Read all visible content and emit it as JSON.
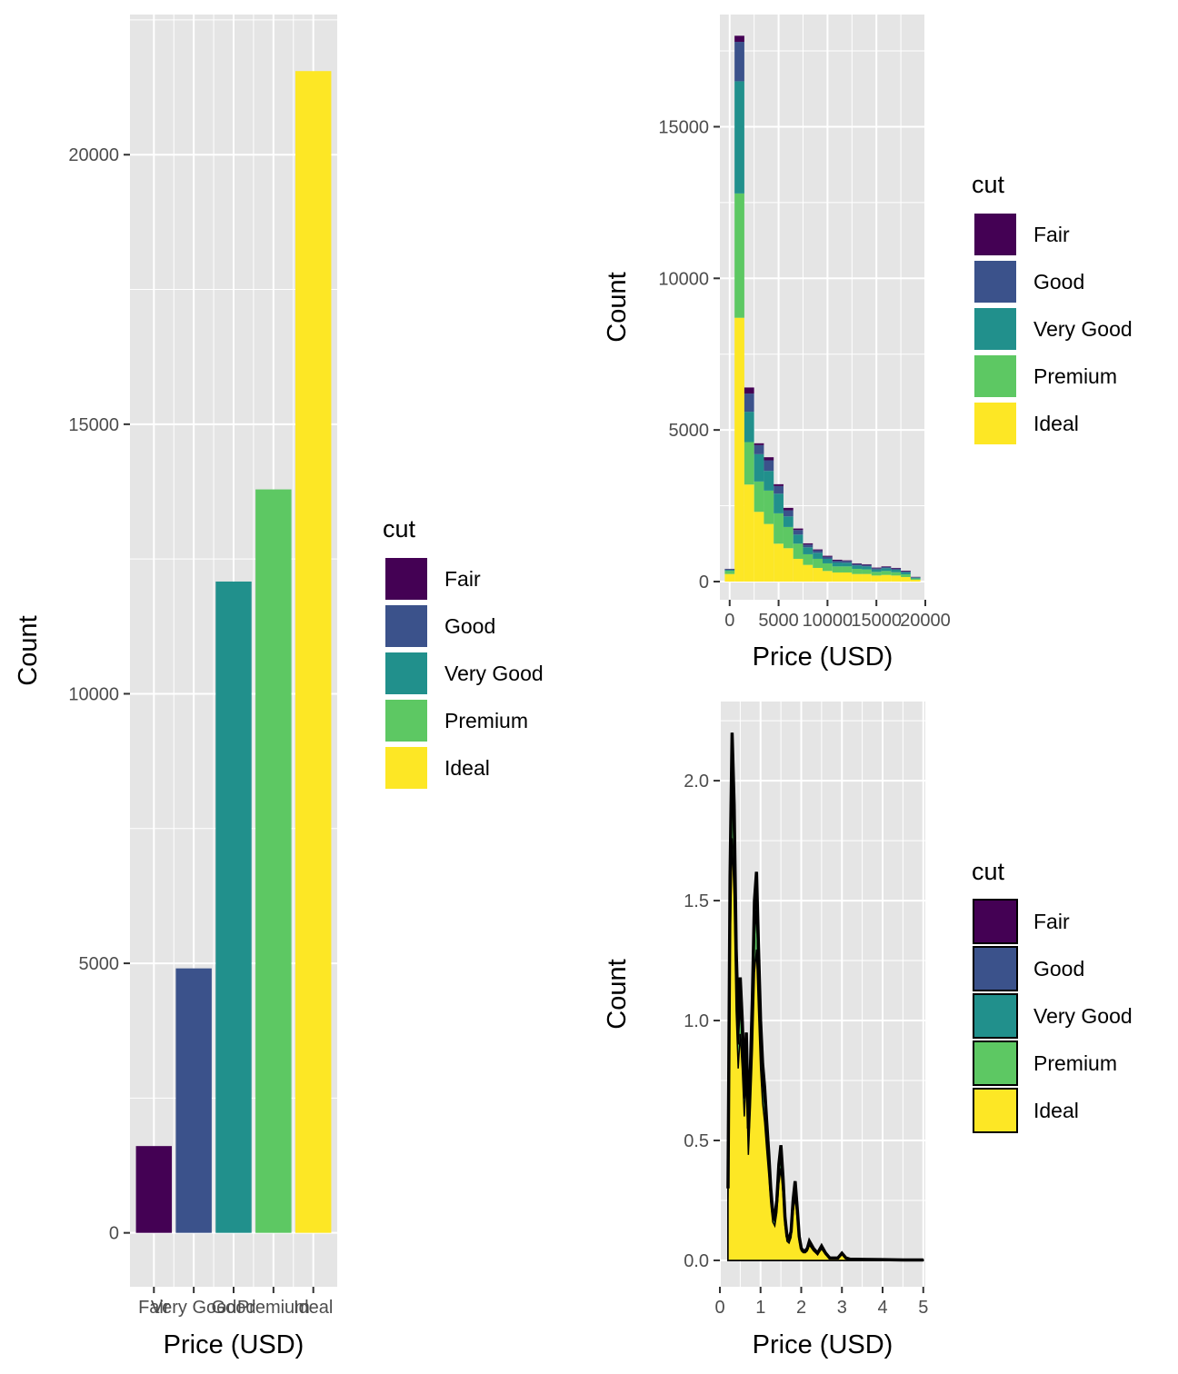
{
  "palette": {
    "panel_bg": "#e5e5e5",
    "grid": "#ffffff",
    "Fair": "#440154",
    "Good": "#3b528b",
    "Very Good": "#21908c",
    "Premium": "#5dc863",
    "Ideal": "#fde725"
  },
  "chart_data": [
    {
      "id": "bar",
      "type": "bar",
      "title": "",
      "xlabel": "Price (USD)",
      "ylabel": "Count",
      "categories": [
        "Fair",
        "Very Good",
        "Good",
        "Premium",
        "Ideal"
      ],
      "tick_labels": [
        "Fair",
        "Very Good",
        "Good",
        "Premium",
        "Ideal"
      ],
      "values": [
        1610,
        4906,
        12082,
        13791,
        21551
      ],
      "fill_keys": [
        "Fair",
        "Good",
        "Very Good",
        "Premium",
        "Ideal"
      ],
      "ylim": [
        -1000,
        22600
      ],
      "yticks": [
        0,
        5000,
        10000,
        15000,
        20000
      ],
      "legend": {
        "title": "cut",
        "entries": [
          "Fair",
          "Good",
          "Very Good",
          "Premium",
          "Ideal"
        ],
        "position": "right"
      },
      "grid": true
    },
    {
      "id": "histogram",
      "type": "bar",
      "stacked": true,
      "title": "",
      "xlabel": "Price (USD)",
      "ylabel": "Count",
      "xlim": [
        -1000,
        20000
      ],
      "ylim": [
        -600,
        18700
      ],
      "xticks": [
        0,
        5000,
        10000,
        15000,
        20000
      ],
      "yticks": [
        0,
        5000,
        10000,
        15000
      ],
      "bin_centers": [
        0,
        1000,
        2000,
        3000,
        4000,
        5000,
        6000,
        7000,
        8000,
        9000,
        10000,
        11000,
        12000,
        13000,
        14000,
        15000,
        16000,
        17000,
        18000,
        19000
      ],
      "series": [
        {
          "name": "Ideal",
          "values": [
            250,
            8700,
            3200,
            2300,
            1900,
            1250,
            1100,
            750,
            550,
            450,
            350,
            300,
            300,
            250,
            250,
            200,
            220,
            200,
            150,
            60
          ]
        },
        {
          "name": "Premium",
          "values": [
            100,
            4100,
            1400,
            1000,
            1100,
            1000,
            700,
            500,
            350,
            300,
            250,
            200,
            200,
            170,
            150,
            120,
            130,
            110,
            90,
            40
          ]
        },
        {
          "name": "Very Good",
          "values": [
            40,
            3700,
            1000,
            900,
            650,
            650,
            350,
            300,
            230,
            200,
            150,
            130,
            120,
            110,
            100,
            80,
            90,
            80,
            70,
            30
          ]
        },
        {
          "name": "Good",
          "values": [
            20,
            1300,
            600,
            300,
            350,
            250,
            200,
            150,
            90,
            80,
            70,
            60,
            60,
            50,
            50,
            40,
            40,
            40,
            30,
            15
          ]
        },
        {
          "name": "Fair",
          "values": [
            10,
            200,
            200,
            60,
            100,
            60,
            80,
            50,
            40,
            30,
            30,
            30,
            20,
            20,
            20,
            20,
            20,
            20,
            20,
            10
          ]
        }
      ],
      "legend": {
        "title": "cut",
        "entries": [
          "Fair",
          "Good",
          "Very Good",
          "Premium",
          "Ideal"
        ],
        "position": "right"
      },
      "grid": true
    },
    {
      "id": "density",
      "type": "area",
      "stacked": true,
      "title": "",
      "xlabel": "Price (USD)",
      "ylabel": "Count",
      "xlim": [
        0,
        5.05
      ],
      "ylim": [
        -0.11,
        2.33
      ],
      "xticks": [
        0,
        1,
        2,
        3,
        4,
        5
      ],
      "yticks": [
        0.0,
        0.5,
        1.0,
        1.5,
        2.0
      ],
      "ytick_labels": [
        "0.0",
        "0.5",
        "1.0",
        "1.5",
        "2.0"
      ],
      "total_curve": {
        "x": [
          0.2,
          0.25,
          0.3,
          0.35,
          0.4,
          0.45,
          0.5,
          0.55,
          0.6,
          0.65,
          0.7,
          0.75,
          0.8,
          0.85,
          0.9,
          0.95,
          1.0,
          1.05,
          1.1,
          1.15,
          1.2,
          1.25,
          1.3,
          1.35,
          1.4,
          1.45,
          1.5,
          1.55,
          1.6,
          1.65,
          1.7,
          1.75,
          1.8,
          1.85,
          1.9,
          1.95,
          2.0,
          2.05,
          2.1,
          2.15,
          2.2,
          2.3,
          2.4,
          2.5,
          2.6,
          2.7,
          2.8,
          2.9,
          3.0,
          3.1,
          3.2,
          3.5,
          4.0,
          4.5,
          5.0
        ],
        "y": [
          0.3,
          1.6,
          2.2,
          1.9,
          1.3,
          1.0,
          1.18,
          1.0,
          0.75,
          0.95,
          0.55,
          0.8,
          1.1,
          1.5,
          1.62,
          1.3,
          1.0,
          0.82,
          0.72,
          0.58,
          0.45,
          0.3,
          0.2,
          0.18,
          0.25,
          0.4,
          0.48,
          0.35,
          0.18,
          0.1,
          0.09,
          0.12,
          0.25,
          0.33,
          0.22,
          0.1,
          0.05,
          0.04,
          0.04,
          0.05,
          0.08,
          0.05,
          0.03,
          0.06,
          0.03,
          0.01,
          0.01,
          0.01,
          0.03,
          0.01,
          0.005,
          0.004,
          0.003,
          0.002,
          0.002
        ]
      },
      "series_shares": [
        {
          "name": "Ideal",
          "share": 0.8
        },
        {
          "name": "Premium",
          "share": 0.1
        },
        {
          "name": "Very Good",
          "share": 0.06
        },
        {
          "name": "Good",
          "share": 0.03
        },
        {
          "name": "Fair",
          "share": 0.01
        }
      ],
      "legend": {
        "title": "cut",
        "entries": [
          "Fair",
          "Good",
          "Very Good",
          "Premium",
          "Ideal"
        ],
        "position": "right"
      },
      "grid": true
    }
  ]
}
